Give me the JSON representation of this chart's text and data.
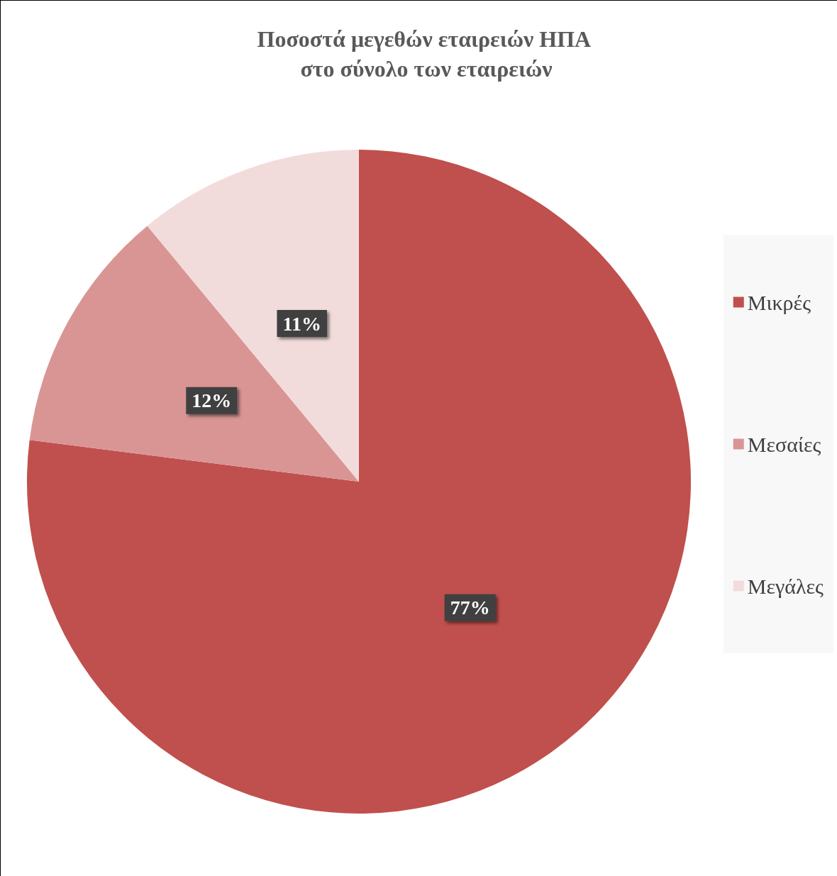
{
  "chart_data": {
    "type": "pie",
    "title": "Ποσοστά μεγεθών εταιρειών ΗΠΑ στο σύνολο των εταιρειών",
    "categories": [
      "Μικρές",
      "Μεσαίες",
      "Μεγάλες"
    ],
    "values": [
      77,
      12,
      11
    ],
    "colors": [
      "#c0504d",
      "#d99594",
      "#f2dcdb"
    ],
    "value_labels": [
      "77%",
      "12%",
      "11%"
    ],
    "legend": "right"
  }
}
